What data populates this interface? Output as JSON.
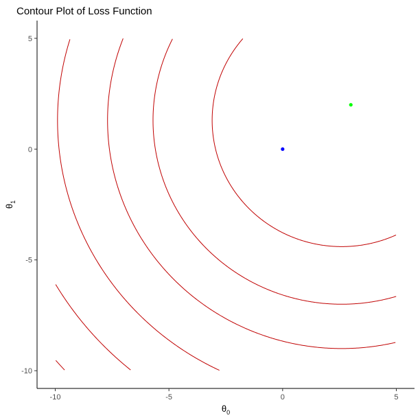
{
  "chart_data": {
    "type": "contour",
    "title": "Contour Plot of Loss Function",
    "xlabel": {
      "base": "θ",
      "sub": "0"
    },
    "ylabel": {
      "base": "θ",
      "sub": "1"
    },
    "xlim": [
      -10.8,
      5.8
    ],
    "ylim": [
      -10.8,
      5.8
    ],
    "xticks": [
      -10,
      -5,
      0,
      5
    ],
    "yticks": [
      -10,
      -5,
      0,
      5
    ],
    "xtick_labels": [
      "-10",
      "-5",
      "0",
      "5"
    ],
    "ytick_labels": [
      "-10",
      "-5",
      "0",
      "5"
    ],
    "grid": false,
    "contour_color": "#c00000",
    "contour_center": [
      2.6,
      1.3
    ],
    "contour_radii": [
      5.7,
      8.3,
      10.3,
      12.5,
      14.6,
      16.6
    ],
    "contour_clip": {
      "x": [
        -10,
        5
      ],
      "y": [
        -10,
        5
      ]
    },
    "points": [
      {
        "x": 0,
        "y": 0,
        "color": "#0000ff"
      },
      {
        "x": 3,
        "y": 2,
        "color": "#00ff00"
      }
    ]
  }
}
